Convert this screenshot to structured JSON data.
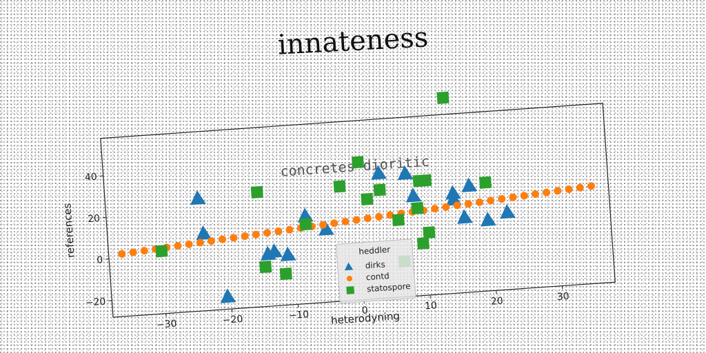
{
  "chart_data": {
    "type": "scatter",
    "title": "innateness",
    "subtitle": "concretes dioritic",
    "xlabel": "heterodyning",
    "ylabel": "references",
    "xlim": [
      -38,
      38
    ],
    "ylim": [
      -28,
      58
    ],
    "xticks": [
      -30,
      -20,
      -10,
      0,
      10,
      20,
      30
    ],
    "yticks": [
      -20,
      0,
      20,
      40
    ],
    "grid": false,
    "legend_position": "bottom-center",
    "legend_title": "heddler",
    "series": [
      {
        "name": "dirks",
        "marker": "triangle",
        "color": "#1f77b4",
        "points": [
          [
            -24,
            26
          ],
          [
            -23.5,
            9
          ],
          [
            -20.5,
            -22
          ],
          [
            -14,
            -3
          ],
          [
            -13,
            -2
          ],
          [
            -11,
            -4
          ],
          [
            -8,
            14
          ],
          [
            -5,
            7
          ],
          [
            3.5,
            32
          ],
          [
            7.5,
            31
          ],
          [
            8.5,
            20
          ],
          [
            14.5,
            20
          ],
          [
            14.5,
            17
          ],
          [
            17,
            23
          ],
          [
            16,
            8
          ],
          [
            19.5,
            6
          ],
          [
            22.5,
            9
          ]
        ]
      },
      {
        "name": "contd",
        "marker": "circle",
        "color": "#ff7f0e",
        "points": [
          [
            -36,
            2.0
          ],
          [
            -34.3,
            2.4
          ],
          [
            -32.6,
            2.8
          ],
          [
            -30.9,
            3.2
          ],
          [
            -29.2,
            3.6
          ],
          [
            -27.5,
            4.0
          ],
          [
            -25.8,
            4.4
          ],
          [
            -24.1,
            4.8
          ],
          [
            -22.4,
            5.2
          ],
          [
            -20.7,
            5.6
          ],
          [
            -19.0,
            6.0
          ],
          [
            -17.3,
            6.4
          ],
          [
            -15.6,
            6.8
          ],
          [
            -13.9,
            7.2
          ],
          [
            -12.2,
            7.6
          ],
          [
            -10.5,
            8.0
          ],
          [
            -8.8,
            8.4
          ],
          [
            -7.1,
            8.8
          ],
          [
            -5.4,
            9.2
          ],
          [
            -3.7,
            9.6
          ],
          [
            -2.0,
            10.0
          ],
          [
            -0.3,
            10.4
          ],
          [
            1.4,
            10.8
          ],
          [
            3.1,
            11.2
          ],
          [
            4.8,
            11.6
          ],
          [
            6.5,
            12.0
          ],
          [
            8.2,
            12.4
          ],
          [
            9.9,
            12.8
          ],
          [
            11.6,
            13.2
          ],
          [
            13.3,
            13.6
          ],
          [
            15.0,
            14.0
          ],
          [
            16.7,
            14.4
          ],
          [
            18.4,
            14.8
          ],
          [
            20.1,
            15.2
          ],
          [
            21.8,
            15.6
          ],
          [
            23.5,
            16.0
          ],
          [
            25.2,
            16.4
          ],
          [
            26.9,
            16.8
          ],
          [
            28.6,
            17.2
          ],
          [
            30.3,
            17.6
          ],
          [
            32.0,
            18.0
          ],
          [
            33.7,
            18.4
          ],
          [
            35.4,
            18.8
          ]
        ]
      },
      {
        "name": "statospore",
        "marker": "square",
        "color": "#2ca02c",
        "points": [
          [
            -30,
            2
          ],
          [
            -15,
            27
          ],
          [
            -14.5,
            -9
          ],
          [
            -11.5,
            -13
          ],
          [
            -8,
            10
          ],
          [
            -2.5,
            27
          ],
          [
            0.5,
            38
          ],
          [
            1.5,
            20
          ],
          [
            3.5,
            24
          ],
          [
            6,
            9
          ],
          [
            6.5,
            -11
          ],
          [
            9,
            14
          ],
          [
            9.5,
            27
          ],
          [
            10.5,
            27
          ],
          [
            10.5,
            2
          ],
          [
            9.5,
            -3
          ],
          [
            14,
            66
          ],
          [
            19.5,
            24
          ]
        ]
      }
    ]
  }
}
